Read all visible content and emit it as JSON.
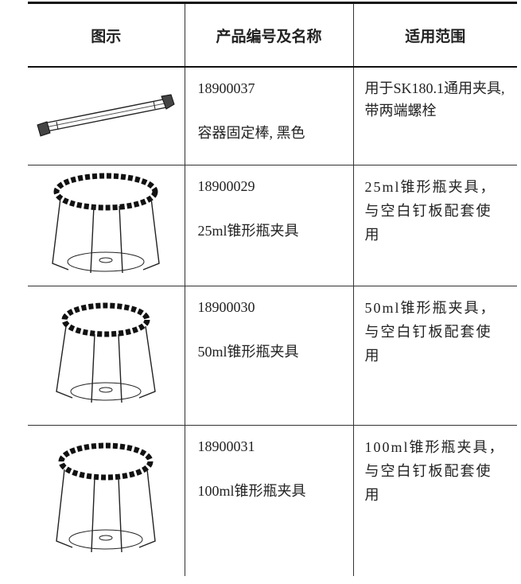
{
  "table": {
    "header": [
      "图示",
      "产品编号及名称",
      "适用范围"
    ],
    "rows": [
      {
        "code": "18900037",
        "name": "容器固定棒, 黑色",
        "description": "用于SK180.1通用夹具,带两端螺栓"
      },
      {
        "code": "18900029",
        "name": "25ml锥形瓶夹具",
        "description": "25ml锥形瓶夹具，与空白钉板配套使用"
      },
      {
        "code": "18900030",
        "name": "50ml锥形瓶夹具",
        "description": "50ml锥形瓶夹具，与空白钉板配套使用"
      },
      {
        "code": "18900031",
        "name": "100ml锥形瓶夹具",
        "description": "100ml锥形瓶夹具，与空白钉板配套使用"
      }
    ]
  }
}
